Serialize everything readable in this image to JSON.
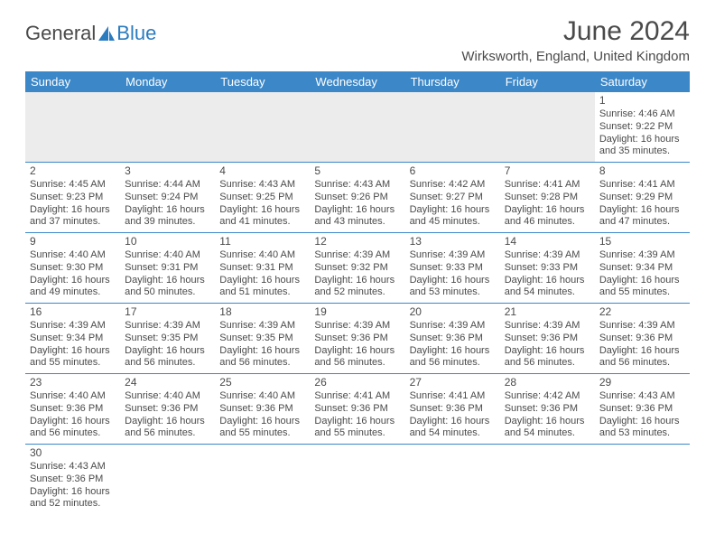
{
  "logo": {
    "text1": "General",
    "text2": "Blue"
  },
  "title": "June 2024",
  "location": "Wirksworth, England, United Kingdom",
  "colors": {
    "header_bg": "#3b87c8",
    "header_fg": "#ffffff",
    "border": "#3b87c8",
    "filler": "#ececec",
    "text": "#4a4a4a"
  },
  "weekdays": [
    "Sunday",
    "Monday",
    "Tuesday",
    "Wednesday",
    "Thursday",
    "Friday",
    "Saturday"
  ],
  "weeks": [
    [
      null,
      null,
      null,
      null,
      null,
      null,
      {
        "d": "1",
        "sr": "Sunrise: 4:46 AM",
        "ss": "Sunset: 9:22 PM",
        "dl1": "Daylight: 16 hours",
        "dl2": "and 35 minutes."
      }
    ],
    [
      {
        "d": "2",
        "sr": "Sunrise: 4:45 AM",
        "ss": "Sunset: 9:23 PM",
        "dl1": "Daylight: 16 hours",
        "dl2": "and 37 minutes."
      },
      {
        "d": "3",
        "sr": "Sunrise: 4:44 AM",
        "ss": "Sunset: 9:24 PM",
        "dl1": "Daylight: 16 hours",
        "dl2": "and 39 minutes."
      },
      {
        "d": "4",
        "sr": "Sunrise: 4:43 AM",
        "ss": "Sunset: 9:25 PM",
        "dl1": "Daylight: 16 hours",
        "dl2": "and 41 minutes."
      },
      {
        "d": "5",
        "sr": "Sunrise: 4:43 AM",
        "ss": "Sunset: 9:26 PM",
        "dl1": "Daylight: 16 hours",
        "dl2": "and 43 minutes."
      },
      {
        "d": "6",
        "sr": "Sunrise: 4:42 AM",
        "ss": "Sunset: 9:27 PM",
        "dl1": "Daylight: 16 hours",
        "dl2": "and 45 minutes."
      },
      {
        "d": "7",
        "sr": "Sunrise: 4:41 AM",
        "ss": "Sunset: 9:28 PM",
        "dl1": "Daylight: 16 hours",
        "dl2": "and 46 minutes."
      },
      {
        "d": "8",
        "sr": "Sunrise: 4:41 AM",
        "ss": "Sunset: 9:29 PM",
        "dl1": "Daylight: 16 hours",
        "dl2": "and 47 minutes."
      }
    ],
    [
      {
        "d": "9",
        "sr": "Sunrise: 4:40 AM",
        "ss": "Sunset: 9:30 PM",
        "dl1": "Daylight: 16 hours",
        "dl2": "and 49 minutes."
      },
      {
        "d": "10",
        "sr": "Sunrise: 4:40 AM",
        "ss": "Sunset: 9:31 PM",
        "dl1": "Daylight: 16 hours",
        "dl2": "and 50 minutes."
      },
      {
        "d": "11",
        "sr": "Sunrise: 4:40 AM",
        "ss": "Sunset: 9:31 PM",
        "dl1": "Daylight: 16 hours",
        "dl2": "and 51 minutes."
      },
      {
        "d": "12",
        "sr": "Sunrise: 4:39 AM",
        "ss": "Sunset: 9:32 PM",
        "dl1": "Daylight: 16 hours",
        "dl2": "and 52 minutes."
      },
      {
        "d": "13",
        "sr": "Sunrise: 4:39 AM",
        "ss": "Sunset: 9:33 PM",
        "dl1": "Daylight: 16 hours",
        "dl2": "and 53 minutes."
      },
      {
        "d": "14",
        "sr": "Sunrise: 4:39 AM",
        "ss": "Sunset: 9:33 PM",
        "dl1": "Daylight: 16 hours",
        "dl2": "and 54 minutes."
      },
      {
        "d": "15",
        "sr": "Sunrise: 4:39 AM",
        "ss": "Sunset: 9:34 PM",
        "dl1": "Daylight: 16 hours",
        "dl2": "and 55 minutes."
      }
    ],
    [
      {
        "d": "16",
        "sr": "Sunrise: 4:39 AM",
        "ss": "Sunset: 9:34 PM",
        "dl1": "Daylight: 16 hours",
        "dl2": "and 55 minutes."
      },
      {
        "d": "17",
        "sr": "Sunrise: 4:39 AM",
        "ss": "Sunset: 9:35 PM",
        "dl1": "Daylight: 16 hours",
        "dl2": "and 56 minutes."
      },
      {
        "d": "18",
        "sr": "Sunrise: 4:39 AM",
        "ss": "Sunset: 9:35 PM",
        "dl1": "Daylight: 16 hours",
        "dl2": "and 56 minutes."
      },
      {
        "d": "19",
        "sr": "Sunrise: 4:39 AM",
        "ss": "Sunset: 9:36 PM",
        "dl1": "Daylight: 16 hours",
        "dl2": "and 56 minutes."
      },
      {
        "d": "20",
        "sr": "Sunrise: 4:39 AM",
        "ss": "Sunset: 9:36 PM",
        "dl1": "Daylight: 16 hours",
        "dl2": "and 56 minutes."
      },
      {
        "d": "21",
        "sr": "Sunrise: 4:39 AM",
        "ss": "Sunset: 9:36 PM",
        "dl1": "Daylight: 16 hours",
        "dl2": "and 56 minutes."
      },
      {
        "d": "22",
        "sr": "Sunrise: 4:39 AM",
        "ss": "Sunset: 9:36 PM",
        "dl1": "Daylight: 16 hours",
        "dl2": "and 56 minutes."
      }
    ],
    [
      {
        "d": "23",
        "sr": "Sunrise: 4:40 AM",
        "ss": "Sunset: 9:36 PM",
        "dl1": "Daylight: 16 hours",
        "dl2": "and 56 minutes."
      },
      {
        "d": "24",
        "sr": "Sunrise: 4:40 AM",
        "ss": "Sunset: 9:36 PM",
        "dl1": "Daylight: 16 hours",
        "dl2": "and 56 minutes."
      },
      {
        "d": "25",
        "sr": "Sunrise: 4:40 AM",
        "ss": "Sunset: 9:36 PM",
        "dl1": "Daylight: 16 hours",
        "dl2": "and 55 minutes."
      },
      {
        "d": "26",
        "sr": "Sunrise: 4:41 AM",
        "ss": "Sunset: 9:36 PM",
        "dl1": "Daylight: 16 hours",
        "dl2": "and 55 minutes."
      },
      {
        "d": "27",
        "sr": "Sunrise: 4:41 AM",
        "ss": "Sunset: 9:36 PM",
        "dl1": "Daylight: 16 hours",
        "dl2": "and 54 minutes."
      },
      {
        "d": "28",
        "sr": "Sunrise: 4:42 AM",
        "ss": "Sunset: 9:36 PM",
        "dl1": "Daylight: 16 hours",
        "dl2": "and 54 minutes."
      },
      {
        "d": "29",
        "sr": "Sunrise: 4:43 AM",
        "ss": "Sunset: 9:36 PM",
        "dl1": "Daylight: 16 hours",
        "dl2": "and 53 minutes."
      }
    ],
    [
      {
        "d": "30",
        "sr": "Sunrise: 4:43 AM",
        "ss": "Sunset: 9:36 PM",
        "dl1": "Daylight: 16 hours",
        "dl2": "and 52 minutes."
      },
      null,
      null,
      null,
      null,
      null,
      null
    ]
  ]
}
